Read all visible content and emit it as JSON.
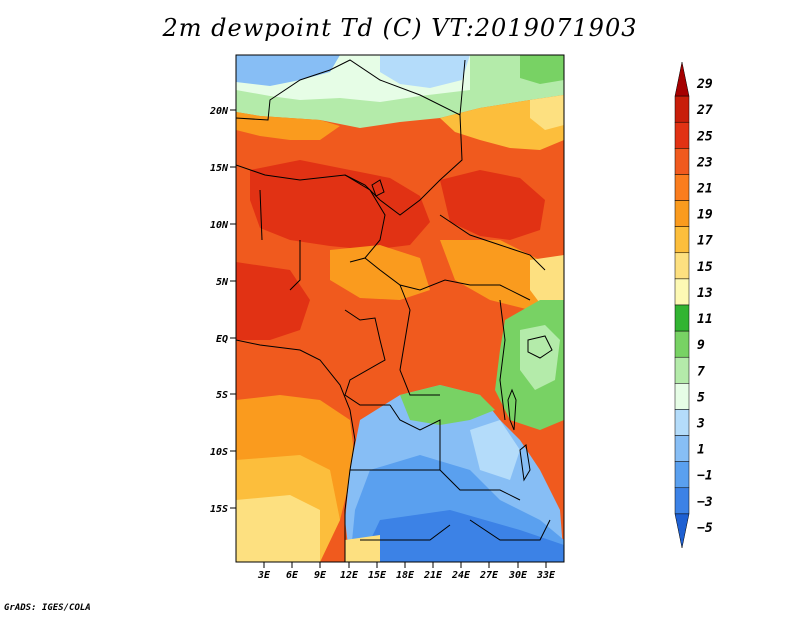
{
  "title": "2m dewpoint Td (C) VT:2019071903",
  "credit": "GrADS: IGES/COLA",
  "map": {
    "lat_ticks": [
      "20N",
      "15N",
      "10N",
      "5N",
      "EQ",
      "5S",
      "10S",
      "15S"
    ],
    "lon_ticks": [
      "3E",
      "6E",
      "9E",
      "12E",
      "15E",
      "18E",
      "21E",
      "24E",
      "27E",
      "30E",
      "33E"
    ]
  },
  "colorbar": {
    "labels": [
      "29",
      "27",
      "25",
      "23",
      "21",
      "19",
      "17",
      "15",
      "13",
      "11",
      "9",
      "7",
      "5",
      "3",
      "1",
      "−1",
      "−3",
      "−5"
    ],
    "colors": [
      "#a50000",
      "#c81e0a",
      "#e13214",
      "#f05a1e",
      "#fa7d1e",
      "#fa9b1e",
      "#fcbe3c",
      "#fde080",
      "#fdf9b4",
      "#32b432",
      "#78d264",
      "#b4ebaa",
      "#e6fde6",
      "#b4dcfa",
      "#87bef5",
      "#5aa0ef",
      "#3c82e6",
      "#1e60d2"
    ]
  }
}
